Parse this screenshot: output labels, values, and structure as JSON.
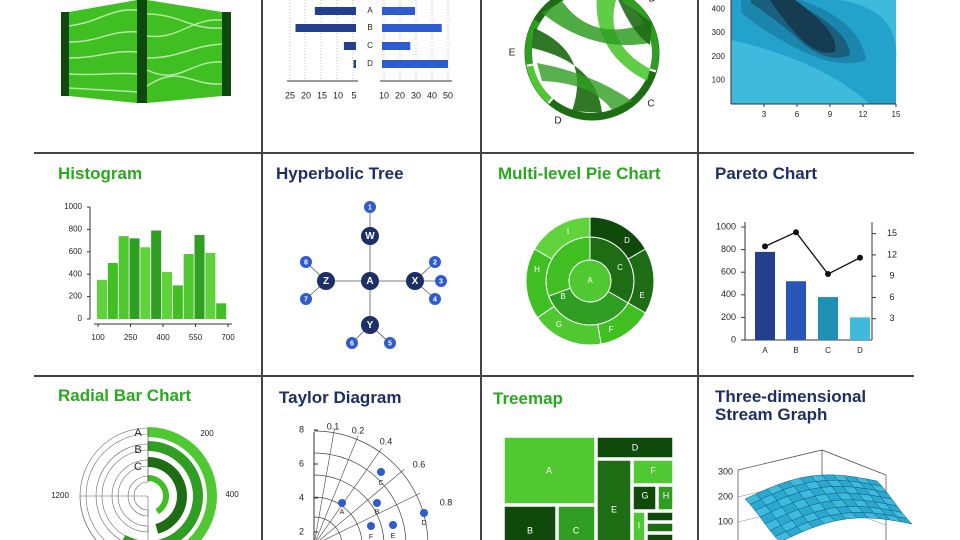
{
  "colors": {
    "green_title": "#2aa81e",
    "navy_title": "#1c2f66",
    "green_bright": "#4fc832",
    "green_mid": "#2f9e22",
    "green_dark": "#1e6d14",
    "green_deep": "#0f4a0b",
    "navy": "#23408f",
    "blue": "#2f5bd0",
    "teal": "#1f8fb3",
    "sky": "#3fb9dc"
  },
  "panels": [
    {
      "id": "sankey",
      "title": ""
    },
    {
      "id": "butterfly",
      "title": ""
    },
    {
      "id": "chord",
      "title": ""
    },
    {
      "id": "contour",
      "title": ""
    },
    {
      "id": "histogram",
      "title": "Histogram"
    },
    {
      "id": "hyperbolic",
      "title": "Hyperbolic Tree"
    },
    {
      "id": "multipie",
      "title": "Multi-level Pie Chart"
    },
    {
      "id": "pareto",
      "title": "Pareto Chart"
    },
    {
      "id": "radialbar",
      "title": "Radial Bar Chart"
    },
    {
      "id": "taylor",
      "title": "Taylor Diagram"
    },
    {
      "id": "treemap",
      "title": "Treemap"
    },
    {
      "id": "stream3d",
      "title_line1": "Three-dimensional",
      "title_line2": "Stream Graph"
    }
  ],
  "chart_data": [
    {
      "type": "bar",
      "id": "butterfly",
      "categories": [
        "A",
        "B",
        "C",
        "D"
      ],
      "series": [
        {
          "values": [
            17,
            25,
            5,
            1
          ]
        },
        {
          "values": [
            21,
            38,
            18,
            42
          ]
        }
      ],
      "left_ticks": [
        "25",
        "20",
        "15",
        "10",
        "5"
      ],
      "right_ticks": [
        "10",
        "20",
        "30",
        "40",
        "50"
      ],
      "grid": true
    },
    {
      "type": "chord",
      "id": "chord",
      "labels": [
        "D",
        "C",
        "E",
        "D"
      ]
    },
    {
      "type": "heatmap",
      "id": "contour",
      "x_ticks": [
        3,
        6,
        9,
        12,
        15
      ],
      "y_ticks": [
        100,
        200,
        300,
        400
      ],
      "xlim": [
        0,
        15
      ],
      "ylim": [
        0,
        440
      ]
    },
    {
      "type": "bar",
      "id": "histogram",
      "x_ticks": [
        "100",
        "250",
        "400",
        "550",
        "700"
      ],
      "y_ticks": [
        "0",
        "200",
        "400",
        "600",
        "800",
        "1000"
      ],
      "xlim": [
        100,
        700
      ],
      "ylim": [
        0,
        1000
      ],
      "values": [
        350,
        500,
        740,
        720,
        640,
        790,
        420,
        300,
        580,
        750,
        590,
        140
      ]
    },
    {
      "type": "tree",
      "id": "hyperbolic",
      "nodes": [
        "A",
        "W",
        "Z",
        "X",
        "Y",
        "1",
        "2",
        "3",
        "4",
        "5",
        "6",
        "7",
        "8"
      ]
    },
    {
      "type": "pie",
      "id": "multipie",
      "inner": [
        "A"
      ],
      "middle": [
        "B",
        "C",
        "H"
      ],
      "outer": [
        "D",
        "E",
        "F",
        "G",
        "H",
        "I"
      ]
    },
    {
      "type": "bar",
      "id": "pareto",
      "categories": [
        "A",
        "B",
        "C",
        "D"
      ],
      "values": [
        780,
        520,
        380,
        200
      ],
      "line_values": [
        13.2,
        15.2,
        9.3,
        11.6
      ],
      "left_ticks": [
        "0",
        "200",
        "400",
        "600",
        "800",
        "1000"
      ],
      "right_ticks": [
        "3",
        "6",
        "9",
        "12",
        "15"
      ],
      "ylim": [
        0,
        1000
      ],
      "y2lim": [
        0,
        16.5
      ]
    },
    {
      "type": "bar",
      "id": "radialbar",
      "categories": [
        "A",
        "B",
        "C"
      ],
      "values": [
        0.82,
        0.74,
        0.6
      ],
      "labels": [
        "200",
        "400",
        "1200"
      ]
    },
    {
      "type": "scatter",
      "id": "taylor",
      "y_ticks": [
        "2",
        "4",
        "6",
        "8"
      ],
      "corr_ticks": [
        "0.1",
        "0.2",
        "0.4",
        "0.6",
        "0.8"
      ],
      "points": [
        "A",
        "B",
        "C",
        "D",
        "E",
        "F"
      ]
    },
    {
      "type": "table",
      "id": "treemap",
      "labels": [
        "A",
        "B",
        "C",
        "D",
        "E",
        "F",
        "G",
        "H",
        "I"
      ]
    },
    {
      "type": "area",
      "id": "stream3d",
      "z_ticks": [
        "100",
        "200",
        "300"
      ]
    }
  ]
}
